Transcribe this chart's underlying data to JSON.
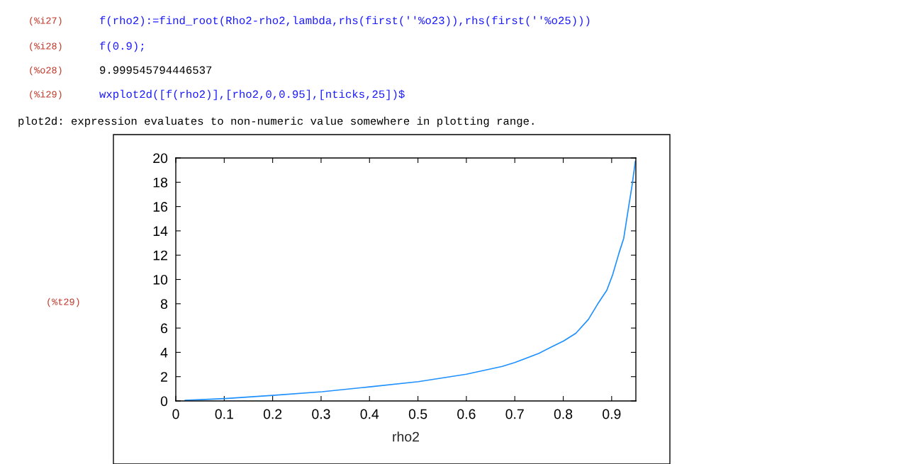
{
  "chart_data": {
    "type": "line",
    "xlabel": "rho2",
    "annotations": [
      "(%i27)",
      "f(rho2):=find_root(Rho2-rho2,lambda,rhs(first(''%o23)),rhs(first(''%o25)))",
      "(%i28)",
      "f(0.9);",
      "(%o28)",
      "9.999545794446537",
      "(%i29)",
      "wxplot2d([f(rho2)],[rho2,0,0.95],[nticks,25])$",
      "plot2d: expression evaluates to non-numeric value somewhere in plotting range.",
      "(%t29)"
    ],
    "series": [
      {
        "color": "#1e90ff",
        "x": [
          0.019,
          0.102,
          0.2,
          0.302,
          0.4,
          0.501,
          0.6,
          0.674,
          0.7,
          0.75,
          0.775,
          0.801,
          0.826,
          0.852,
          0.871,
          0.89,
          0.902,
          0.915,
          0.925,
          0.934,
          0.942,
          0.949
        ],
        "values": [
          0.05,
          0.2,
          0.46,
          0.76,
          1.16,
          1.59,
          2.2,
          2.84,
          3.16,
          3.92,
          4.43,
          4.94,
          5.57,
          6.71,
          7.97,
          9.11,
          10.38,
          12.15,
          13.4,
          15.7,
          17.7,
          19.75
        ]
      }
    ],
    "xlim": [
      0,
      0.95
    ],
    "ylim": [
      0,
      20
    ],
    "xticks": [
      0,
      0.1,
      0.2,
      0.3,
      0.4,
      0.5,
      0.6,
      0.7,
      0.8,
      0.9
    ],
    "yticks": [
      0,
      2,
      4,
      6,
      8,
      10,
      12,
      14,
      16,
      18,
      20
    ],
    "grid": false,
    "marker": "none",
    "line_style": "solid"
  }
}
